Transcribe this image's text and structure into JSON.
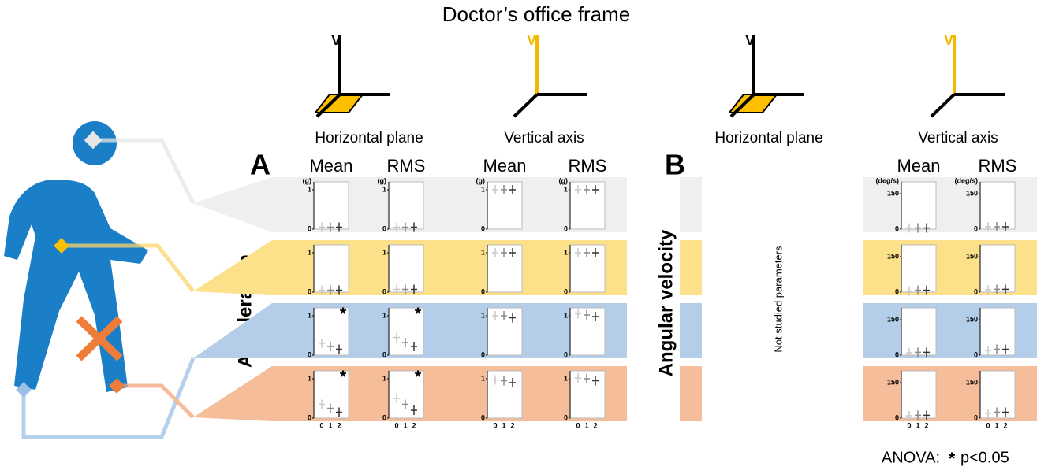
{
  "title": "Doctor’s office frame",
  "frames": [
    {
      "axis": "V",
      "label": "Horizontal plane"
    },
    {
      "axis": "V",
      "label": "Vertical axis"
    },
    {
      "axis": "V",
      "label": "Horizontal plane"
    },
    {
      "axis": "V",
      "label": "Vertical axis"
    }
  ],
  "panel_a": {
    "letter": "A",
    "row_label": "Acceleration",
    "unit": "(g)",
    "columns": [
      "Mean",
      "RMS",
      "Mean",
      "RMS"
    ],
    "ylim": [
      0,
      1.2
    ],
    "yticks": [
      0,
      1
    ],
    "xticks": [
      0,
      1,
      2
    ],
    "rows": [
      {
        "cells": [
          {
            "values": [
              0.05,
              0.05,
              0.05
            ]
          },
          {
            "values": [
              0.05,
              0.05,
              0.05
            ]
          },
          {
            "values": [
              1.0,
              1.0,
              1.0
            ]
          },
          {
            "values": [
              1.0,
              1.0,
              1.0
            ]
          }
        ]
      },
      {
        "cells": [
          {
            "values": [
              0.05,
              0.05,
              0.05
            ]
          },
          {
            "values": [
              0.07,
              0.07,
              0.07
            ]
          },
          {
            "values": [
              1.0,
              1.0,
              1.0
            ]
          },
          {
            "values": [
              1.0,
              1.0,
              1.0
            ]
          }
        ]
      },
      {
        "cells": [
          {
            "values": [
              0.3,
              0.22,
              0.15
            ],
            "mark": "*"
          },
          {
            "values": [
              0.45,
              0.32,
              0.22
            ],
            "mark": "*"
          },
          {
            "values": [
              1.0,
              1.0,
              0.95
            ]
          },
          {
            "values": [
              1.05,
              1.02,
              0.98
            ]
          }
        ]
      },
      {
        "cells": [
          {
            "values": [
              0.35,
              0.25,
              0.15
            ],
            "mark": "*"
          },
          {
            "values": [
              0.5,
              0.35,
              0.2
            ],
            "mark": "*"
          },
          {
            "values": [
              0.97,
              0.95,
              0.9
            ]
          },
          {
            "values": [
              1.02,
              1.0,
              0.95
            ]
          }
        ]
      }
    ]
  },
  "panel_b": {
    "letter": "B",
    "row_label": "Angular velocity",
    "note": "Not studied parameters",
    "unit": "(deg/s)",
    "columns": [
      "Mean",
      "RMS"
    ],
    "ylim": [
      0,
      200
    ],
    "yticks": [
      0,
      150
    ],
    "xticks": [
      0,
      1,
      2
    ],
    "rows": [
      {
        "cells": [
          {
            "values": [
              5,
              5,
              5
            ]
          },
          {
            "values": [
              10,
              10,
              10
            ]
          }
        ]
      },
      {
        "cells": [
          {
            "values": [
              5,
              8,
              8
            ]
          },
          {
            "values": [
              10,
              12,
              12
            ]
          }
        ]
      },
      {
        "cells": [
          {
            "values": [
              10,
              12,
              12
            ]
          },
          {
            "values": [
              20,
              25,
              25
            ]
          }
        ]
      },
      {
        "cells": [
          {
            "values": [
              10,
              12,
              12
            ]
          },
          {
            "values": [
              20,
              25,
              25
            ]
          }
        ]
      }
    ]
  },
  "footnote": {
    "prefix": "ANOVA:",
    "symbol": "*",
    "text": "p<0.05"
  }
}
